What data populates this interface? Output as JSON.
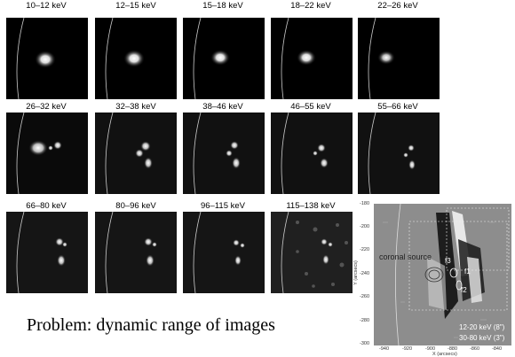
{
  "panels": [
    {
      "label": "10–12 keV"
    },
    {
      "label": "12–15 keV"
    },
    {
      "label": "15–18 keV"
    },
    {
      "label": "18–22 keV"
    },
    {
      "label": "22–26 keV"
    },
    {
      "label": "26–32 keV"
    },
    {
      "label": "32–38 keV"
    },
    {
      "label": "38–46 keV"
    },
    {
      "label": "46–55 keV"
    },
    {
      "label": "55–66 keV"
    },
    {
      "label": "66–80 keV"
    },
    {
      "label": "80–96 keV"
    },
    {
      "label": "96–115 keV"
    },
    {
      "label": "115–138 keV"
    }
  ],
  "caption": "Problem: dynamic range of images",
  "overlay": {
    "y_label": "Y (arcsecs)",
    "x_label": "X (arcsecs)",
    "y_ticks": [
      "-180",
      "-200",
      "-220",
      "-240",
      "-260",
      "-280",
      "-300"
    ],
    "x_ticks": [
      "-940",
      "-920",
      "-900",
      "-880",
      "-860",
      "-840"
    ],
    "coronal_label": "coronal source",
    "f1": "f1",
    "f2": "f2",
    "f3": "f3",
    "legend1": "12-20 keV (8\")",
    "legend2": "30-80 keV (3\")"
  }
}
